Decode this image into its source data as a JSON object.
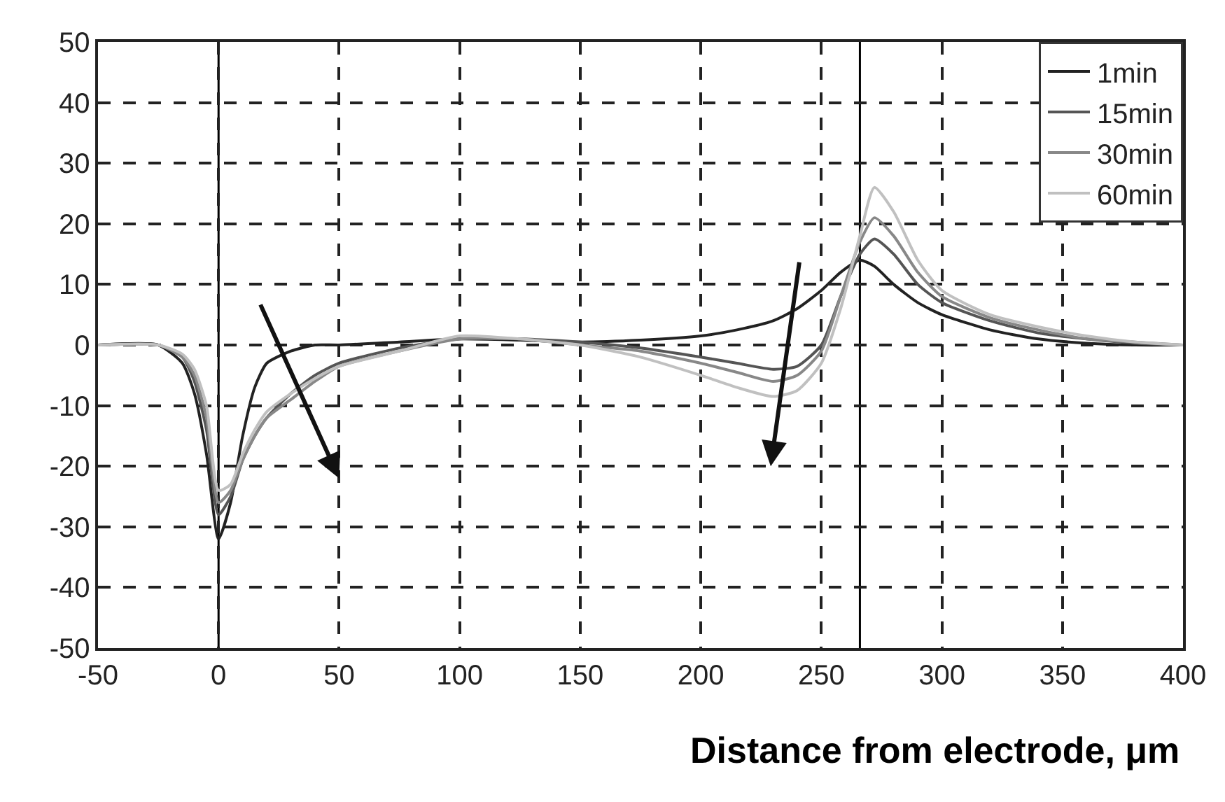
{
  "chart_data": {
    "type": "line",
    "xlabel": "Distance from electrode, μm",
    "x": [
      -50,
      -25,
      -15,
      -10,
      -5,
      0,
      5,
      10,
      15,
      20,
      30,
      40,
      50,
      75,
      100,
      125,
      150,
      175,
      200,
      215,
      230,
      240,
      250,
      258,
      266,
      272,
      280,
      290,
      300,
      320,
      340,
      360,
      380,
      400
    ],
    "series": [
      {
        "name": "1min",
        "color": "#222222",
        "values": [
          0,
          0,
          -3,
          -8,
          -18,
          -32,
          -26,
          -15,
          -7,
          -3,
          -1,
          0,
          0,
          0.5,
          1,
          0.8,
          0.5,
          0.8,
          1.5,
          2.5,
          4,
          6,
          9,
          12,
          14,
          13,
          10,
          7,
          5,
          2.5,
          1,
          0.3,
          0,
          0
        ]
      },
      {
        "name": "15min",
        "color": "#555555",
        "values": [
          0,
          0,
          -2,
          -6,
          -14,
          -28,
          -25,
          -19,
          -15,
          -12,
          -8,
          -5,
          -3,
          -0.5,
          1,
          1,
          0.5,
          -0.5,
          -2,
          -3,
          -4,
          -3.5,
          0,
          8,
          15,
          17.5,
          15,
          10,
          7,
          4,
          2,
          1,
          0.3,
          0
        ]
      },
      {
        "name": "30min",
        "color": "#888888",
        "values": [
          0,
          0,
          -2,
          -5,
          -12,
          -26,
          -24,
          -19,
          -15,
          -12,
          -9,
          -6,
          -3.5,
          -1,
          1,
          1,
          0,
          -1,
          -3,
          -4.5,
          -6,
          -5,
          -1,
          8,
          17,
          21,
          18,
          12,
          8,
          4.5,
          2.5,
          1,
          0.5,
          0
        ]
      },
      {
        "name": "60min",
        "color": "#c0c0c0",
        "values": [
          0,
          0,
          -1.5,
          -4,
          -10,
          -24,
          -23,
          -18,
          -14,
          -11,
          -8,
          -5.5,
          -3.5,
          -1,
          1.5,
          1,
          0,
          -2,
          -5,
          -7,
          -8.5,
          -7.5,
          -3,
          6,
          18,
          26,
          22,
          14,
          9,
          5,
          3,
          1.5,
          0.5,
          0
        ]
      }
    ],
    "xlim": [
      -50,
      400
    ],
    "xticks": [
      -50,
      0,
      50,
      100,
      150,
      200,
      250,
      300,
      350,
      400
    ],
    "ylim": [
      -50,
      50
    ],
    "yticks": [
      -50,
      -40,
      -30,
      -20,
      -10,
      0,
      10,
      20,
      30,
      40,
      50
    ],
    "grid": true,
    "legend": "top right",
    "line_style": "solid",
    "marker": "none",
    "ref_lines": [
      {
        "axis": "x",
        "value": 0,
        "color": "#000000"
      },
      {
        "axis": "x",
        "value": 266,
        "color": "#000000"
      }
    ]
  }
}
